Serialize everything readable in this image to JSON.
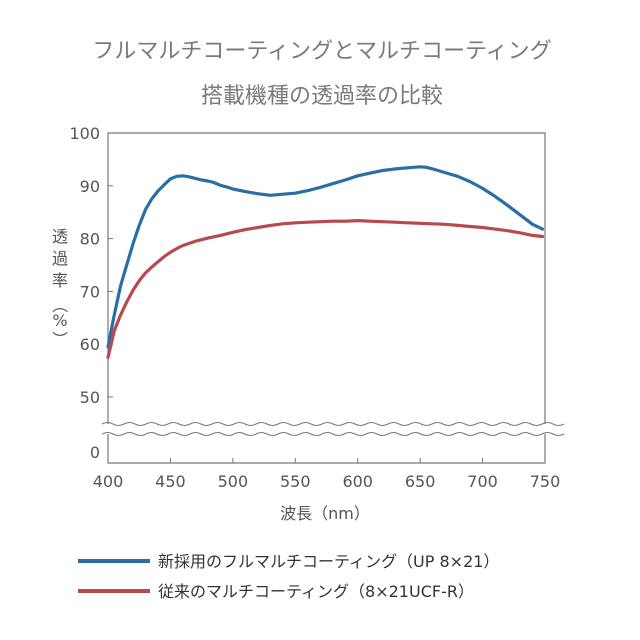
{
  "chart_data": {
    "type": "line",
    "title": "フルマルチコーティングとマルチコーティング",
    "subtitle": "搭載機種の透過率の比較",
    "xlabel": "波長（nm）",
    "ylabel": [
      "透",
      "過",
      "率",
      "（",
      "%",
      "）"
    ],
    "xlim": [
      400,
      750
    ],
    "ylim": [
      50,
      100
    ],
    "broken_axis_bottom_tick": "0",
    "x_ticks": [
      "400",
      "450",
      "500",
      "550",
      "600",
      "650",
      "700",
      "750"
    ],
    "y_ticks": [
      "100",
      "90",
      "80",
      "70",
      "60",
      "50"
    ],
    "grid": false,
    "legend_position": "bottom",
    "series": [
      {
        "name": "新採用のフルマルチコーティング（UP 8×21）",
        "color": "#2a6fa3",
        "x": [
          400,
          405,
          410,
          415,
          420,
          425,
          430,
          435,
          440,
          445,
          450,
          455,
          460,
          465,
          470,
          475,
          480,
          485,
          490,
          495,
          500,
          510,
          520,
          530,
          540,
          550,
          560,
          570,
          580,
          590,
          600,
          610,
          620,
          630,
          640,
          650,
          655,
          660,
          670,
          680,
          690,
          700,
          710,
          720,
          730,
          740,
          748
        ],
        "y": [
          59.5,
          65.5,
          71,
          75,
          79,
          82.5,
          85.5,
          87.5,
          89,
          90.2,
          91.3,
          91.8,
          91.9,
          91.7,
          91.4,
          91.1,
          90.9,
          90.6,
          90.1,
          89.8,
          89.4,
          88.9,
          88.5,
          88.2,
          88.4,
          88.6,
          89.1,
          89.7,
          90.4,
          91.1,
          91.9,
          92.4,
          92.9,
          93.2,
          93.4,
          93.6,
          93.5,
          93.2,
          92.5,
          91.8,
          90.8,
          89.5,
          88,
          86.3,
          84.5,
          82.7,
          81.8
        ]
      },
      {
        "name": "従来のマルチコーティング（8×21UCF-R）",
        "color": "#b84a4f",
        "x": [
          400,
          405,
          410,
          415,
          420,
          425,
          430,
          435,
          440,
          445,
          450,
          455,
          460,
          465,
          470,
          475,
          480,
          490,
          500,
          510,
          520,
          530,
          540,
          550,
          560,
          570,
          580,
          590,
          600,
          610,
          620,
          630,
          640,
          650,
          660,
          670,
          680,
          690,
          700,
          710,
          720,
          730,
          740,
          748
        ],
        "y": [
          57.5,
          62.5,
          65.5,
          68,
          70.2,
          72,
          73.5,
          74.6,
          75.6,
          76.6,
          77.4,
          78.1,
          78.7,
          79.1,
          79.5,
          79.8,
          80.1,
          80.6,
          81.2,
          81.7,
          82.1,
          82.5,
          82.8,
          83,
          83.1,
          83.2,
          83.3,
          83.3,
          83.4,
          83.3,
          83.2,
          83.1,
          83,
          82.9,
          82.8,
          82.7,
          82.5,
          82.3,
          82.1,
          81.8,
          81.5,
          81.1,
          80.6,
          80.4
        ]
      }
    ]
  }
}
